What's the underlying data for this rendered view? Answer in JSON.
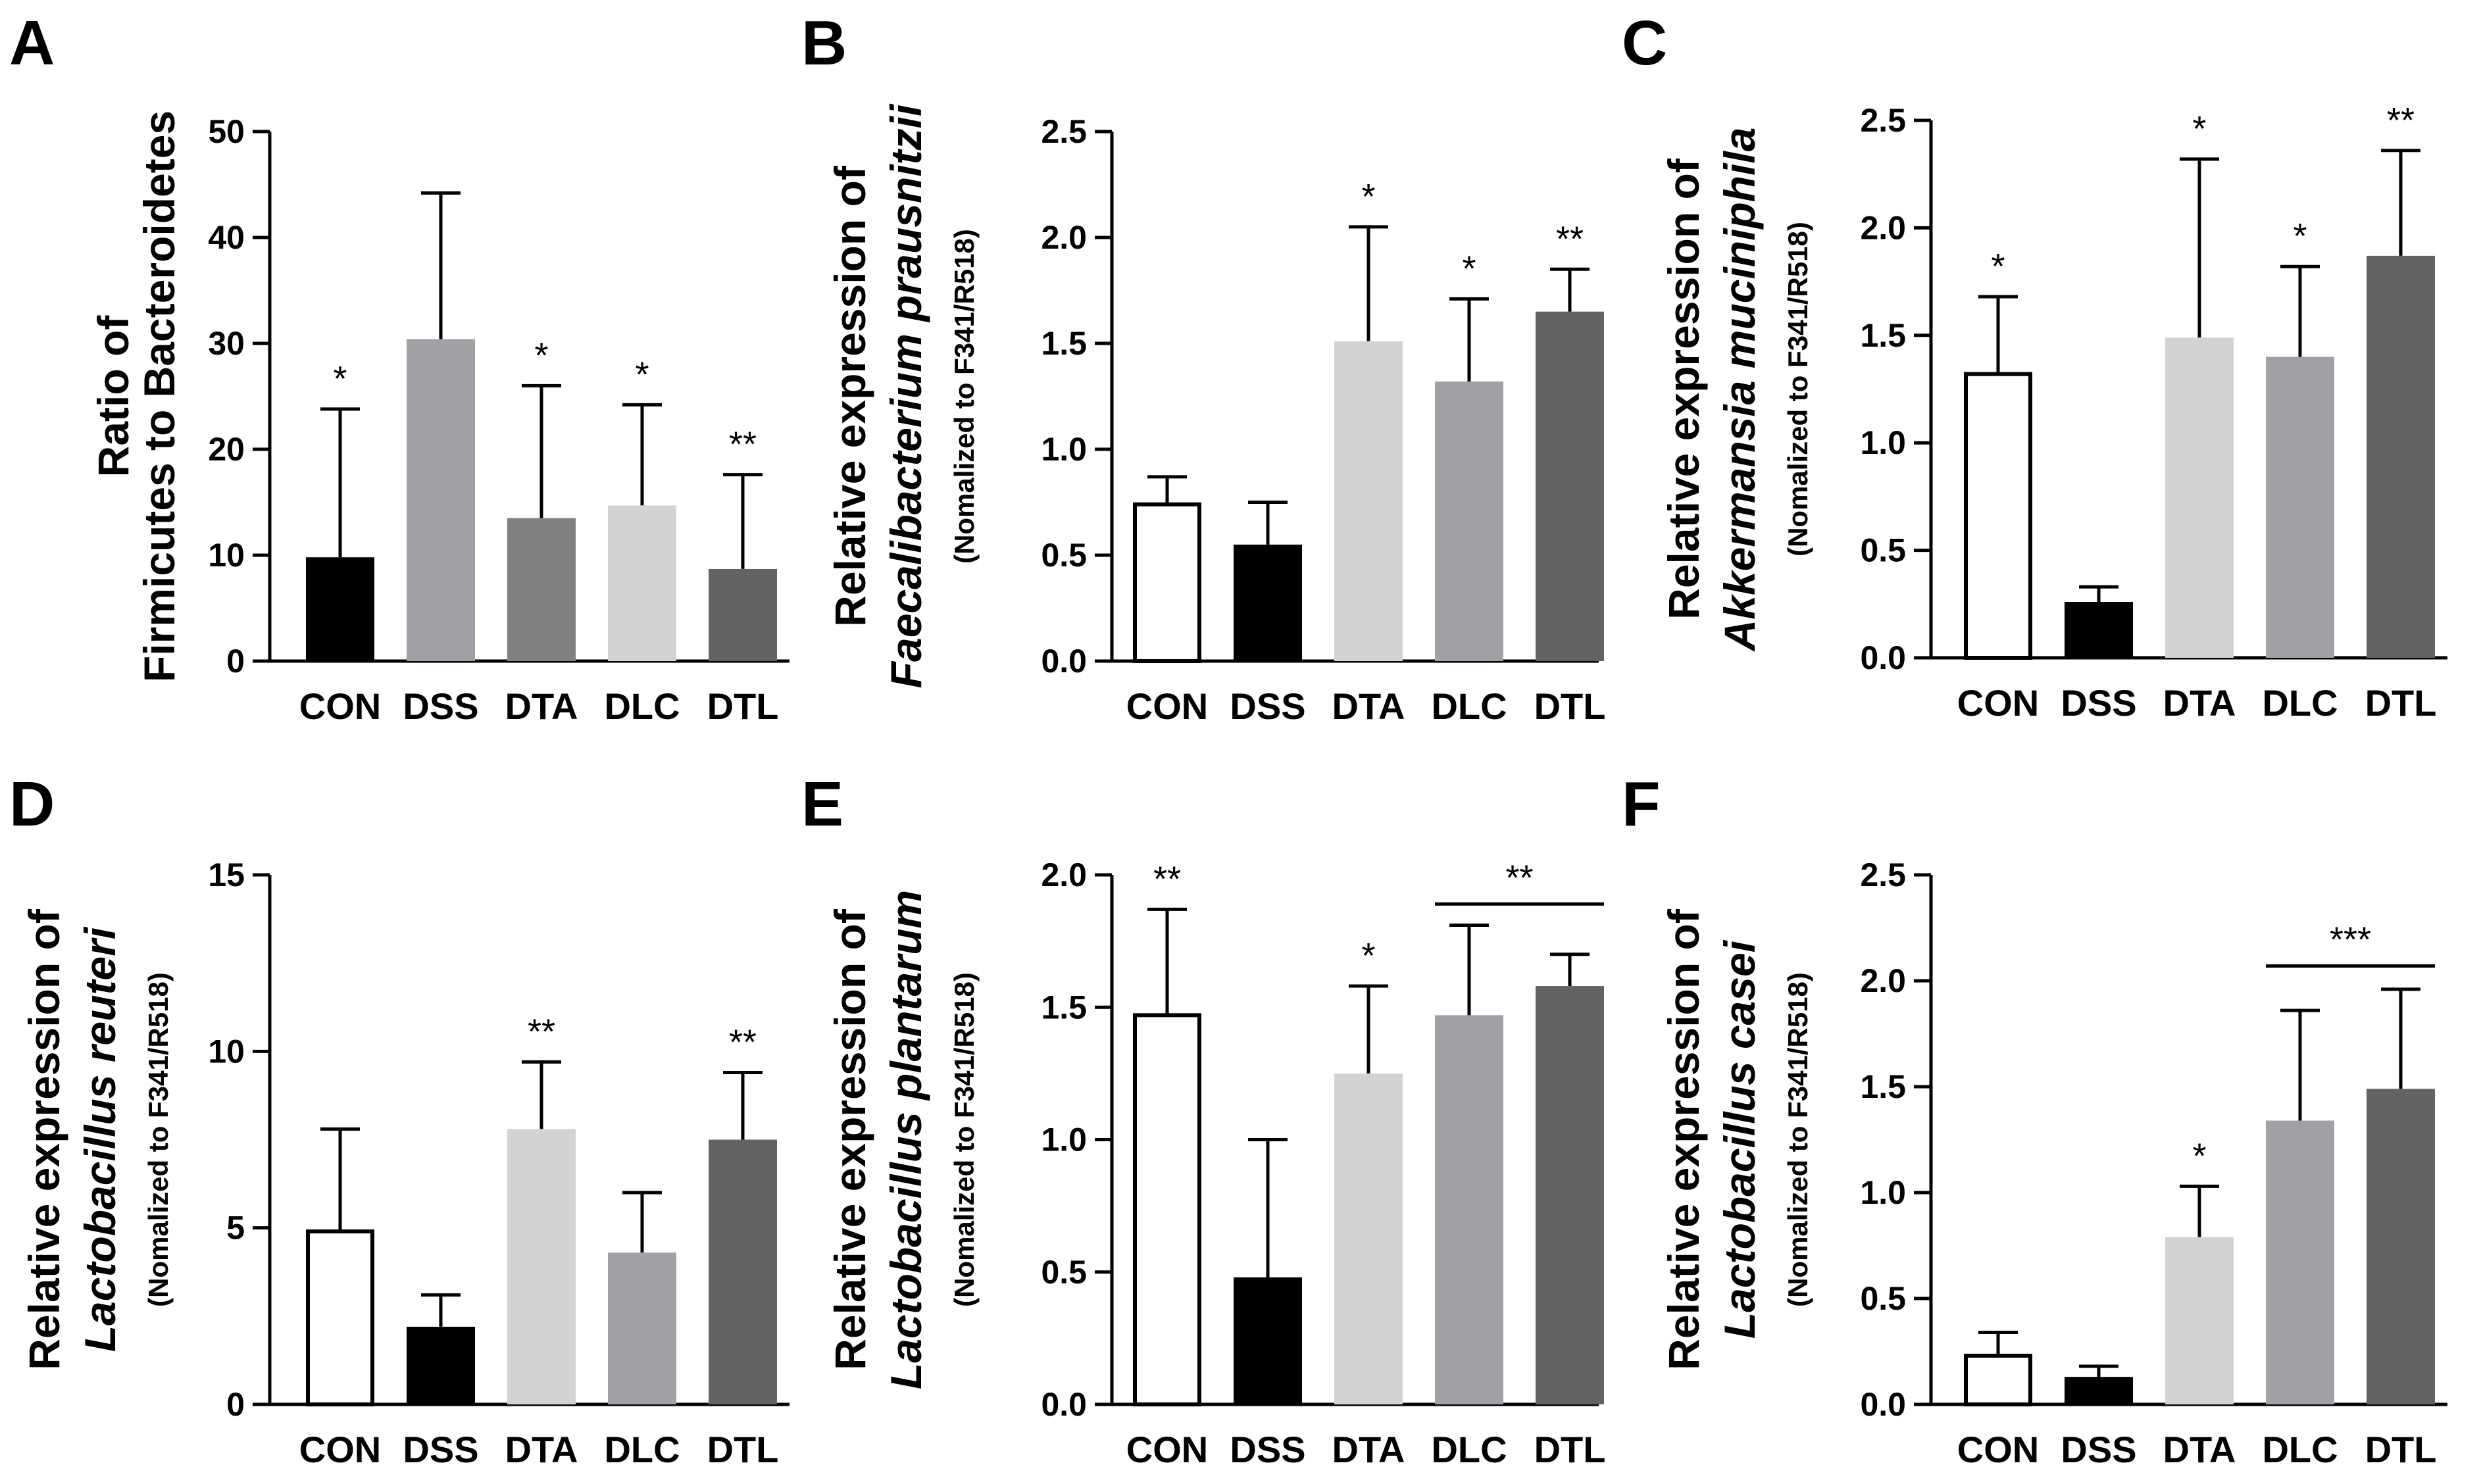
{
  "figure": {
    "panels": [
      {
        "letter": "A",
        "ylabel_lines": [
          "Ratio of",
          "Firmicutes to Bacteroidetes"
        ],
        "ylabel_italic": [
          false,
          false
        ],
        "ylabel_sub": ""
      },
      {
        "letter": "B",
        "ylabel_lines": [
          "Relative expression of",
          "Faecalibacterium prausnitzii"
        ],
        "ylabel_italic": [
          false,
          true
        ],
        "ylabel_sub": "(Nomalized to F341/R518)"
      },
      {
        "letter": "C",
        "ylabel_lines": [
          "Relative expression of",
          "Akkermansia muciniphila"
        ],
        "ylabel_italic": [
          false,
          true
        ],
        "ylabel_sub": "(Nomalized to F341/R518)"
      },
      {
        "letter": "D",
        "ylabel_lines": [
          "Relative expression of",
          "Lactobacillus reuteri"
        ],
        "ylabel_italic": [
          false,
          true
        ],
        "ylabel_sub": "(Nomalized to F341/R518)"
      },
      {
        "letter": "E",
        "ylabel_lines": [
          "Relative expression of",
          "Lactobacillus plantarum"
        ],
        "ylabel_italic": [
          false,
          true
        ],
        "ylabel_sub": "(Nomalized to F341/R518)"
      },
      {
        "letter": "F",
        "ylabel_lines": [
          "Relative expression of",
          "Lactobacillus casei"
        ],
        "ylabel_italic": [
          false,
          true
        ],
        "ylabel_sub": "(Nomalized to F341/R518)"
      }
    ]
  },
  "colors": {
    "black": "#000000",
    "white": "#ffffff",
    "light_gray": "#d3d3d3",
    "mid_gray": "#a0a1a4",
    "dark_gray": "#808080",
    "darkest_gray": "#636363"
  },
  "chart_data": [
    {
      "panel": "A",
      "type": "bar",
      "categories": [
        "CON",
        "DSS",
        "DTA",
        "DLC",
        "DTL"
      ],
      "values": [
        9.8,
        30.4,
        13.5,
        14.7,
        8.7
      ],
      "errors": [
        14.0,
        13.8,
        12.5,
        9.5,
        8.9
      ],
      "fills": [
        "#000000",
        "#a0a1a4",
        "#808080",
        "#d3d3d3",
        "#636363"
      ],
      "significance": [
        "*",
        "",
        "*",
        "*",
        "**"
      ],
      "brackets": [],
      "ylim": [
        0,
        50
      ],
      "yticks": [
        0,
        10,
        20,
        30,
        40,
        50
      ],
      "ytick_labels": [
        "0",
        "10",
        "20",
        "30",
        "40",
        "50"
      ],
      "xlabel": "",
      "ylabel": "Ratio of Firmicutes to Bacteroidetes",
      "title": ""
    },
    {
      "panel": "B",
      "type": "bar",
      "categories": [
        "CON",
        "DSS",
        "DTA",
        "DLC",
        "DTL"
      ],
      "values": [
        0.74,
        0.55,
        1.51,
        1.32,
        1.65
      ],
      "errors": [
        0.13,
        0.2,
        0.54,
        0.39,
        0.2
      ],
      "fills": [
        "#ffffff",
        "#000000",
        "#d3d3d3",
        "#a0a1a4",
        "#636363"
      ],
      "significance": [
        "",
        "",
        "*",
        "*",
        "**"
      ],
      "brackets": [],
      "ylim": [
        0,
        2.5
      ],
      "yticks": [
        0,
        0.5,
        1.0,
        1.5,
        2.0,
        2.5
      ],
      "ytick_labels": [
        "0.0",
        "0.5",
        "1.0",
        "1.5",
        "2.0",
        "2.5"
      ],
      "xlabel": "",
      "ylabel": "Relative expression of Faecalibacterium prausnitzii (Nomalized to F341/R518)",
      "title": ""
    },
    {
      "panel": "C",
      "type": "bar",
      "categories": [
        "CON",
        "DSS",
        "DTA",
        "DLC",
        "DTL"
      ],
      "values": [
        1.32,
        0.26,
        1.49,
        1.4,
        1.87
      ],
      "errors": [
        0.36,
        0.07,
        0.83,
        0.42,
        0.49
      ],
      "fills": [
        "#ffffff",
        "#000000",
        "#d3d3d3",
        "#a0a1a4",
        "#636363"
      ],
      "significance": [
        "*",
        "",
        "*",
        "*",
        "**"
      ],
      "brackets": [],
      "ylim": [
        0,
        2.5
      ],
      "yticks": [
        0,
        0.5,
        1.0,
        1.5,
        2.0,
        2.5
      ],
      "ytick_labels": [
        "0.0",
        "0.5",
        "1.0",
        "1.5",
        "2.0",
        "2.5"
      ],
      "xlabel": "",
      "ylabel": "Relative expression of Akkermansia muciniphila (Nomalized to F341/R518)",
      "title": ""
    },
    {
      "panel": "D",
      "type": "bar",
      "categories": [
        "CON",
        "DSS",
        "DTA",
        "DLC",
        "DTL"
      ],
      "values": [
        4.9,
        2.2,
        7.8,
        4.3,
        7.5
      ],
      "errors": [
        2.9,
        0.9,
        1.9,
        1.7,
        1.9
      ],
      "fills": [
        "#ffffff",
        "#000000",
        "#d3d3d3",
        "#a0a1a4",
        "#636363"
      ],
      "significance": [
        "",
        "",
        "**",
        "",
        "**"
      ],
      "brackets": [],
      "ylim": [
        0,
        15
      ],
      "yticks": [
        0,
        5,
        10,
        15
      ],
      "ytick_labels": [
        "0",
        "5",
        "10",
        "15"
      ],
      "xlabel": "",
      "ylabel": "Relative expression of Lactobacillus reuteri (Nomalized to F341/R518)",
      "title": ""
    },
    {
      "panel": "E",
      "type": "bar",
      "categories": [
        "CON",
        "DSS",
        "DTA",
        "DLC",
        "DTL"
      ],
      "values": [
        1.47,
        0.48,
        1.25,
        1.47,
        1.58
      ],
      "errors": [
        0.4,
        0.52,
        0.33,
        0.34,
        0.12
      ],
      "fills": [
        "#ffffff",
        "#000000",
        "#d3d3d3",
        "#a0a1a4",
        "#636363"
      ],
      "significance": [
        "**",
        "",
        "*",
        "",
        ""
      ],
      "brackets": [
        {
          "from": 3,
          "to": 4,
          "y": 1.89,
          "label": "**"
        }
      ],
      "ylim": [
        0,
        2.0
      ],
      "yticks": [
        0,
        0.5,
        1.0,
        1.5,
        2.0
      ],
      "ytick_labels": [
        "0.0",
        "0.5",
        "1.0",
        "1.5",
        "2.0"
      ],
      "xlabel": "",
      "ylabel": "Relative expression of Lactobacillus plantarum (Nomalized to F341/R518)",
      "title": ""
    },
    {
      "panel": "F",
      "type": "bar",
      "categories": [
        "CON",
        "DSS",
        "DTA",
        "DLC",
        "DTL"
      ],
      "values": [
        0.23,
        0.13,
        0.79,
        1.34,
        1.49
      ],
      "errors": [
        0.11,
        0.05,
        0.24,
        0.52,
        0.47
      ],
      "fills": [
        "#ffffff",
        "#000000",
        "#d3d3d3",
        "#a0a1a4",
        "#636363"
      ],
      "significance": [
        "",
        "",
        "*",
        "",
        ""
      ],
      "brackets": [
        {
          "from": 3,
          "to": 4,
          "y": 2.07,
          "label": "***"
        }
      ],
      "ylim": [
        0,
        2.5
      ],
      "yticks": [
        0,
        0.5,
        1.0,
        1.5,
        2.0,
        2.5
      ],
      "ytick_labels": [
        "0.0",
        "0.5",
        "1.0",
        "1.5",
        "2.0",
        "2.5"
      ],
      "xlabel": "",
      "ylabel": "Relative expression of Lactobacillus casei (Nomalized to F341/R518)",
      "title": ""
    }
  ]
}
